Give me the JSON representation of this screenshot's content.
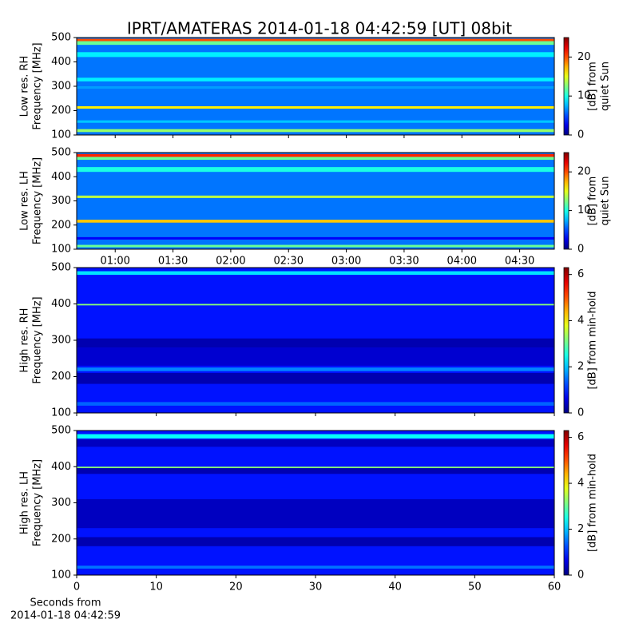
{
  "title": "IPRT/AMATERAS 2014-01-18 04:42:59 [UT]   08bit",
  "time_axis": {
    "xlim": [
      40,
      288
    ],
    "xticks": [
      {
        "value": 60,
        "label": "01:00"
      },
      {
        "value": 90,
        "label": "01:30"
      },
      {
        "value": 120,
        "label": "02:00"
      },
      {
        "value": 150,
        "label": "02:30"
      },
      {
        "value": 180,
        "label": "03:00"
      },
      {
        "value": 210,
        "label": "03:30"
      },
      {
        "value": 240,
        "label": "04:00"
      },
      {
        "value": 270,
        "label": "04:30"
      }
    ]
  },
  "seconds_axis": {
    "xlim": [
      0,
      60
    ],
    "xticks": [
      0,
      10,
      20,
      30,
      40,
      50,
      60
    ],
    "xlabel_lines": [
      "Seconds from",
      "2014-01-18 04:42:59"
    ]
  },
  "chart_data": [
    {
      "type": "spectrogram",
      "xaxis": "time_axis",
      "ylabel_lines": [
        "Low res. RH",
        "Frequency [MHz]"
      ],
      "ylim": [
        100,
        500
      ],
      "yticks": [
        100,
        200,
        300,
        400,
        500
      ],
      "clim": [
        0,
        25
      ],
      "cticks": [
        0,
        10,
        20
      ],
      "clabel_lines": [
        "[dB] from",
        "quiet Sun"
      ],
      "background": 6,
      "bands": [
        {
          "f": [
            485,
            495
          ],
          "level": 20
        },
        {
          "f": [
            470,
            485
          ],
          "level": 12
        },
        {
          "f": [
            420,
            440
          ],
          "level": 9
        },
        {
          "f": [
            320,
            335
          ],
          "level": 9
        },
        {
          "f": [
            290,
            300
          ],
          "level": 7
        },
        {
          "f": [
            208,
            218
          ],
          "level": 16
        },
        {
          "f": [
            150,
            160
          ],
          "level": 8
        },
        {
          "f": [
            112,
            124
          ],
          "level": 13
        }
      ]
    },
    {
      "type": "spectrogram",
      "xaxis": "time_axis",
      "ylabel_lines": [
        "Low res. LH",
        "Frequency [MHz]"
      ],
      "ylim": [
        100,
        500
      ],
      "yticks": [
        100,
        200,
        300,
        400,
        500
      ],
      "clim": [
        0,
        25
      ],
      "cticks": [
        0,
        10,
        20
      ],
      "clabel_lines": [
        "[dB] from",
        "quiet Sun"
      ],
      "background": 6,
      "bands": [
        {
          "f": [
            482,
            494
          ],
          "level": 21
        },
        {
          "f": [
            470,
            482
          ],
          "level": 12
        },
        {
          "f": [
            420,
            440
          ],
          "level": 10
        },
        {
          "f": [
            312,
            322
          ],
          "level": 14
        },
        {
          "f": [
            210,
            222
          ],
          "level": 17
        },
        {
          "f": [
            140,
            150
          ],
          "level": 3
        },
        {
          "f": [
            108,
            118
          ],
          "level": 12
        }
      ]
    },
    {
      "type": "spectrogram",
      "xaxis": "seconds_axis",
      "ylabel_lines": [
        "High res. RH",
        "Frequency [MHz]"
      ],
      "ylim": [
        100,
        500
      ],
      "yticks": [
        100,
        200,
        300,
        400,
        500
      ],
      "clim": [
        0,
        6.3
      ],
      "cticks": [
        0,
        2,
        4,
        6
      ],
      "clabel_lines": [
        "[dB] from min-hold"
      ],
      "background": 0.9,
      "bands": [
        {
          "f": [
            480,
            490
          ],
          "level": 2.2
        },
        {
          "f": [
            396,
            400
          ],
          "level": 3.2
        },
        {
          "f": [
            280,
            305
          ],
          "level": 0.3
        },
        {
          "f": [
            230,
            280
          ],
          "level": 0.5
        },
        {
          "f": [
            180,
            210
          ],
          "level": 0.3
        },
        {
          "f": [
            215,
            225
          ],
          "level": 1.6
        },
        {
          "f": [
            120,
            130
          ],
          "level": 1.4
        }
      ]
    },
    {
      "type": "spectrogram",
      "xaxis": "seconds_axis",
      "ylabel_lines": [
        "High res. LH",
        "Frequency [MHz]"
      ],
      "ylim": [
        100,
        500
      ],
      "yticks": [
        100,
        200,
        300,
        400,
        500
      ],
      "clim": [
        0,
        6.3
      ],
      "cticks": [
        0,
        2,
        4,
        6
      ],
      "clabel_lines": [
        "[dB] from min-hold"
      ],
      "background": 0.9,
      "bands": [
        {
          "f": [
            478,
            490
          ],
          "level": 2.4
        },
        {
          "f": [
            455,
            475
          ],
          "level": 0.4
        },
        {
          "f": [
            380,
            398
          ],
          "level": 0.3
        },
        {
          "f": [
            396,
            400
          ],
          "level": 3.2
        },
        {
          "f": [
            230,
            310
          ],
          "level": 0.4
        },
        {
          "f": [
            180,
            205
          ],
          "level": 0.3
        },
        {
          "f": [
            118,
            126
          ],
          "level": 1.5
        }
      ]
    }
  ]
}
